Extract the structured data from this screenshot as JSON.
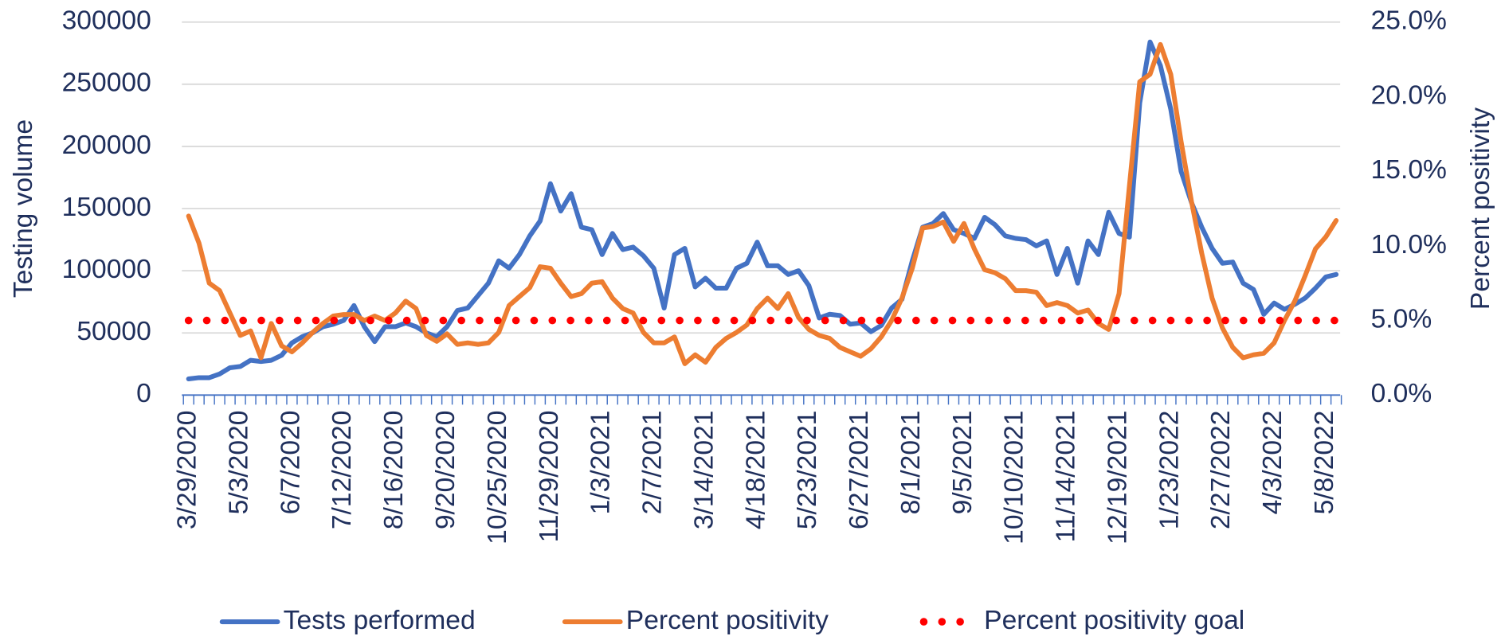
{
  "chart_data": {
    "type": "line",
    "y_label": "Testing volume",
    "y2_label": "Percent positivity",
    "categories": [
      "3/29/2020",
      null,
      null,
      null,
      null,
      "5/3/2020",
      null,
      null,
      null,
      null,
      "6/7/2020",
      null,
      null,
      null,
      null,
      "7/12/2020",
      null,
      null,
      null,
      null,
      "8/16/2020",
      null,
      null,
      null,
      null,
      "9/20/2020",
      null,
      null,
      null,
      null,
      "10/25/2020",
      null,
      null,
      null,
      null,
      "11/29/2020",
      null,
      null,
      null,
      null,
      "1/3/2021",
      null,
      null,
      null,
      null,
      "2/7/2021",
      null,
      null,
      null,
      null,
      "3/14/2021",
      null,
      null,
      null,
      null,
      "4/18/2021",
      null,
      null,
      null,
      null,
      "5/23/2021",
      null,
      null,
      null,
      null,
      "6/27/2021",
      null,
      null,
      null,
      null,
      "8/1/2021",
      null,
      null,
      null,
      null,
      "9/5/2021",
      null,
      null,
      null,
      null,
      "10/10/2021",
      null,
      null,
      null,
      null,
      "11/14/2021",
      null,
      null,
      null,
      null,
      "12/19/2021",
      null,
      null,
      null,
      null,
      "1/23/2022",
      null,
      null,
      null,
      null,
      "2/27/2022",
      null,
      null,
      null,
      null,
      "4/3/2022",
      null,
      null,
      null,
      null,
      "5/8/2022",
      null
    ],
    "series": [
      {
        "name": "Tests performed",
        "color": "#4472c4",
        "style": "solid",
        "axis": "y",
        "values": [
          13000,
          14000,
          14000,
          17000,
          22000,
          23000,
          28000,
          27000,
          28000,
          32000,
          42000,
          47000,
          50000,
          55000,
          57000,
          60000,
          72000,
          55000,
          43000,
          55000,
          55000,
          58000,
          55000,
          50000,
          47000,
          55000,
          68000,
          70000,
          80000,
          90000,
          108000,
          102000,
          113000,
          128000,
          140000,
          170000,
          148000,
          162000,
          135000,
          133000,
          113000,
          130000,
          117000,
          119000,
          112000,
          102000,
          70000,
          113000,
          118000,
          87000,
          94000,
          86000,
          86000,
          102000,
          106000,
          123000,
          104000,
          104000,
          97000,
          100000,
          88000,
          62000,
          65000,
          64000,
          57000,
          58000,
          51000,
          56000,
          70000,
          77000,
          108000,
          135000,
          138000,
          146000,
          133000,
          130000,
          126000,
          143000,
          137000,
          128000,
          126000,
          125000,
          120000,
          124000,
          97000,
          118000,
          90000,
          124000,
          113000,
          147000,
          130000,
          127000,
          235000,
          284000,
          265000,
          230000,
          180000,
          155000,
          135000,
          118000,
          106000,
          107000,
          90000,
          85000,
          65000,
          74000,
          69000,
          73000,
          78000,
          86000,
          95000,
          97000
        ]
      },
      {
        "name": "Percent positivity",
        "color": "#ed7d31",
        "style": "solid",
        "axis": "y2",
        "values": [
          12.0,
          10.2,
          7.5,
          7.0,
          5.5,
          4.0,
          4.3,
          2.5,
          4.8,
          3.3,
          2.9,
          3.5,
          4.2,
          4.8,
          5.3,
          5.4,
          5.4,
          5.0,
          5.3,
          5.0,
          5.5,
          6.3,
          5.8,
          4.0,
          3.6,
          4.1,
          3.4,
          3.5,
          3.4,
          3.5,
          4.2,
          6.0,
          6.6,
          7.2,
          8.6,
          8.5,
          7.5,
          6.6,
          6.8,
          7.5,
          7.6,
          6.5,
          5.8,
          5.5,
          4.2,
          3.5,
          3.5,
          3.9,
          2.1,
          2.7,
          2.2,
          3.2,
          3.8,
          4.2,
          4.7,
          5.8,
          6.5,
          5.8,
          6.8,
          5.2,
          4.4,
          4.0,
          3.8,
          3.2,
          2.9,
          2.6,
          3.1,
          3.9,
          5.0,
          6.5,
          8.5,
          11.2,
          11.3,
          11.6,
          10.3,
          11.5,
          9.8,
          8.4,
          8.2,
          7.8,
          7.0,
          7.0,
          6.9,
          6.0,
          6.2,
          6.0,
          5.5,
          5.7,
          4.8,
          4.4,
          6.8,
          14.0,
          21.0,
          21.5,
          23.5,
          21.5,
          17.0,
          13.0,
          9.5,
          6.5,
          4.5,
          3.2,
          2.5,
          2.7,
          2.8,
          3.5,
          5.0,
          6.3,
          8.0,
          9.8,
          10.6,
          11.7
        ]
      },
      {
        "name": "Percent positivity goal",
        "color": "#ff0000",
        "style": "dotted",
        "axis": "y2",
        "values": [
          5,
          5,
          5,
          5,
          5,
          5,
          5,
          5,
          5,
          5,
          5,
          5,
          5,
          5,
          5,
          5,
          5,
          5,
          5,
          5,
          5,
          5,
          5,
          5,
          5,
          5,
          5,
          5,
          5,
          5,
          5,
          5,
          5,
          5,
          5,
          5,
          5,
          5,
          5,
          5,
          5,
          5,
          5,
          5,
          5,
          5,
          5,
          5,
          5,
          5,
          5,
          5,
          5,
          5,
          5,
          5,
          5,
          5,
          5,
          5,
          5,
          5,
          5,
          5,
          5,
          5,
          5,
          5,
          5,
          5,
          5,
          5,
          5,
          5,
          5,
          5,
          5,
          5,
          5,
          5,
          5,
          5,
          5,
          5,
          5,
          5,
          5,
          5,
          5,
          5,
          5,
          5,
          5,
          5,
          5,
          5,
          5,
          5,
          5,
          5,
          5,
          5,
          5,
          5,
          5,
          5,
          5,
          5,
          5,
          5,
          5,
          5
        ]
      }
    ],
    "ylim": [
      0,
      300000
    ],
    "yticks": [
      0,
      50000,
      100000,
      150000,
      200000,
      250000,
      300000
    ],
    "y2lim": [
      0,
      25
    ],
    "y2ticks": [
      {
        "value": 0,
        "label": "0.0%"
      },
      {
        "value": 5,
        "label": "5.0%"
      },
      {
        "value": 10,
        "label": "10.0%"
      },
      {
        "value": 15,
        "label": "15.0%"
      },
      {
        "value": 20,
        "label": "20.0%"
      },
      {
        "value": 25,
        "label": "25.0%"
      }
    ],
    "grid": true,
    "legend": "bottom"
  }
}
